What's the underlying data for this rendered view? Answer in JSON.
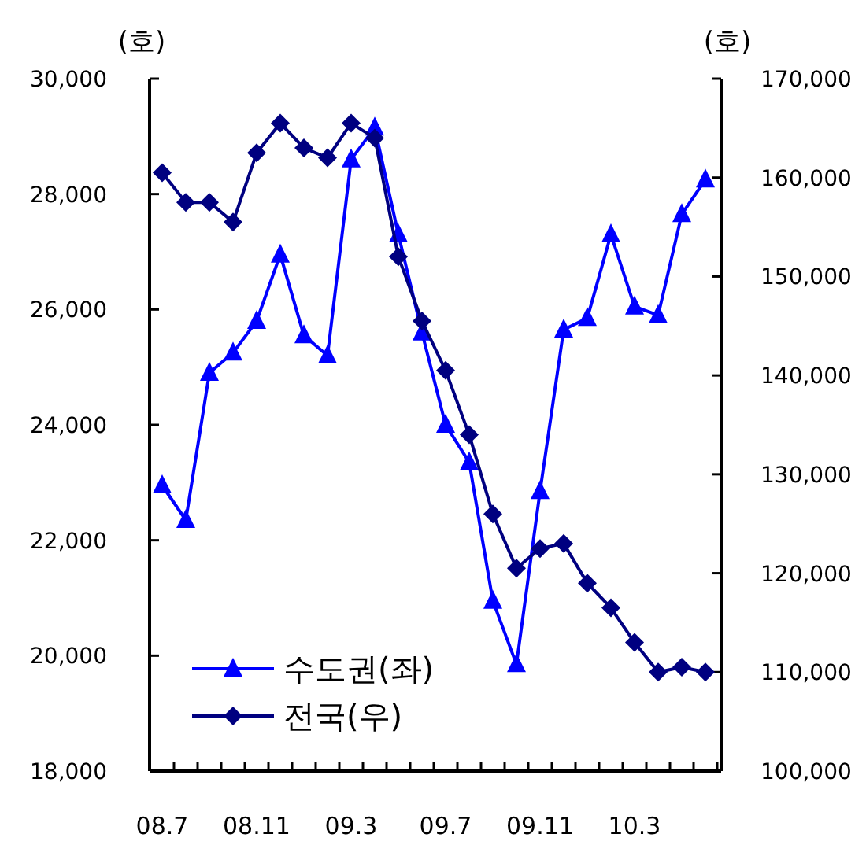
{
  "chart_data": {
    "type": "line",
    "ylabel": "(호)",
    "y2label": "(호)",
    "categories": [
      "08.7",
      null,
      null,
      null,
      "08.11",
      null,
      null,
      null,
      "09.3",
      null,
      null,
      null,
      "09.7",
      null,
      null,
      null,
      "09.11",
      null,
      null,
      null,
      "10.3",
      null,
      null,
      null
    ],
    "series": [
      {
        "name": "수도권(좌)",
        "color": "#0000ff",
        "marker": "triangle",
        "values": [
          22950,
          22350,
          24900,
          25250,
          25800,
          26950,
          25550,
          25200,
          28600,
          29150,
          27300,
          25600,
          24000,
          23350,
          20950,
          19850,
          22850,
          25650,
          25850,
          27300,
          26050,
          25900,
          27650,
          28250
        ]
      },
      {
        "name": "전국(우)",
        "color": "#000080",
        "marker": "diamond",
        "axis": "y2",
        "values": [
          160500,
          157500,
          157500,
          155500,
          162500,
          165500,
          163000,
          162000,
          165500,
          164000,
          152000,
          145500,
          140500,
          134000,
          126000,
          120500,
          122500,
          123000,
          119000,
          116500,
          113000,
          110000,
          110500,
          110000
        ]
      }
    ],
    "ylim": [
      18000,
      30000
    ],
    "yticks": [
      {
        "value": 18000,
        "label": "18,000"
      },
      {
        "value": 20000,
        "label": "20,000"
      },
      {
        "value": 22000,
        "label": "22,000"
      },
      {
        "value": 24000,
        "label": "24,000"
      },
      {
        "value": 26000,
        "label": "26,000"
      },
      {
        "value": 28000,
        "label": "28,000"
      },
      {
        "value": 30000,
        "label": "30,000"
      }
    ],
    "y2lim": [
      100000,
      170000
    ],
    "y2ticks": [
      {
        "value": 100000,
        "label": "100,000"
      },
      {
        "value": 110000,
        "label": "110,000"
      },
      {
        "value": 120000,
        "label": "120,000"
      },
      {
        "value": 130000,
        "label": "130,000"
      },
      {
        "value": 140000,
        "label": "140,000"
      },
      {
        "value": 150000,
        "label": "150,000"
      },
      {
        "value": 160000,
        "label": "160,000"
      },
      {
        "value": 170000,
        "label": "170,000"
      }
    ],
    "legend": "bottom left",
    "grid": false
  }
}
